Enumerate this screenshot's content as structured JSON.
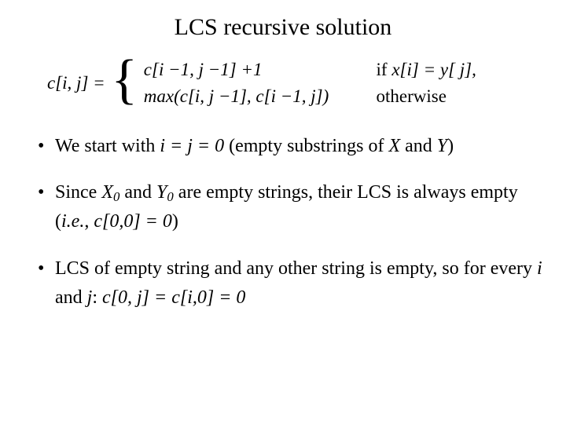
{
  "title": "LCS recursive solution",
  "formula": {
    "lhs": "c[i, j] =",
    "case1_main": "c[i −1, j −1] +1",
    "case1_cond_prefix": "if ",
    "case1_cond_expr": "x[i] = y[ j],",
    "case2_main": "max(c[i, j −1], c[i −1, j])",
    "case2_cond": "otherwise"
  },
  "bullet1": {
    "p1": "We start with ",
    "p2": "i = j = 0",
    "p3": " (empty substrings of ",
    "p4": "X",
    "p5": " and ",
    "p6": "Y",
    "p7": ")"
  },
  "bullet2": {
    "p1": "Since ",
    "p2": "X",
    "sub2": "0",
    "p3": " and ",
    "p4": "Y",
    "sub4": "0",
    "p5": " are empty strings, their LCS is always empty (",
    "p6": "i.e.",
    "p7": ", ",
    "p8": "c[0,0] = 0",
    "p9": ")"
  },
  "bullet3": {
    "p1": "LCS of empty string and any other string is empty, so for every ",
    "p2": "i",
    "p3": " and ",
    "p4": "j",
    "p5": ": ",
    "p6": "c[0, j] = c[i,0] = 0"
  }
}
